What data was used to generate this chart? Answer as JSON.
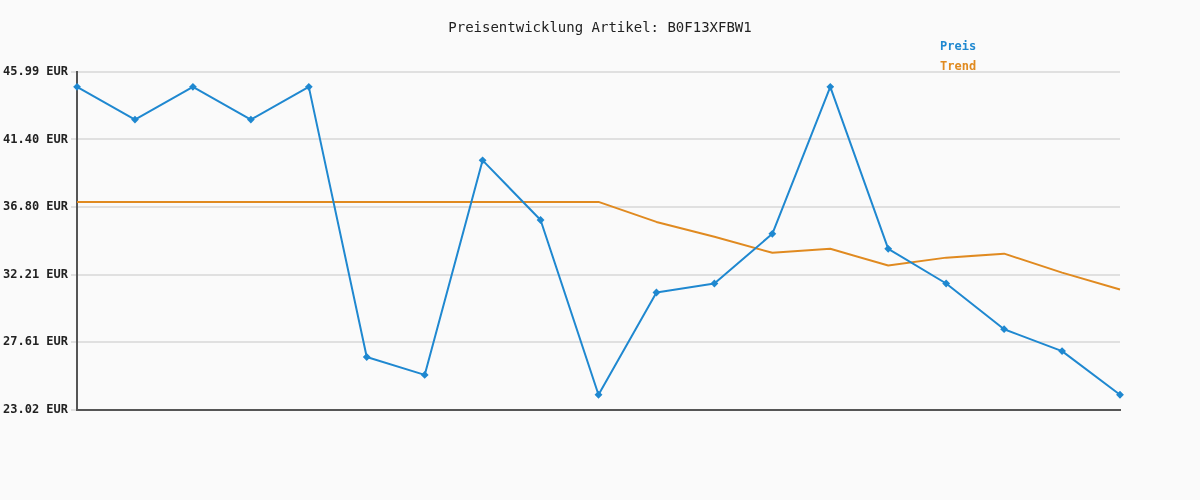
{
  "chart_data": {
    "type": "line",
    "title": "Preisentwicklung Artikel: B0F13XFBW1",
    "categories": [
      null,
      null,
      null,
      null,
      null,
      null,
      null,
      null,
      null,
      null,
      null,
      null,
      null,
      null,
      null,
      null,
      null,
      null,
      null
    ],
    "series": [
      {
        "name": "Preis",
        "color": "#1f88d0",
        "values": [
          44.98,
          42.75,
          44.98,
          42.75,
          44.98,
          26.6,
          25.38,
          39.98,
          35.92,
          24.03,
          30.99,
          31.6,
          34.98,
          44.98,
          33.96,
          31.6,
          28.49,
          27.0,
          24.03
        ]
      },
      {
        "name": "Trend",
        "color": "#e08a20",
        "marker": "none",
        "values": [
          37.15,
          37.15,
          37.15,
          37.15,
          37.15,
          37.15,
          37.15,
          37.15,
          37.15,
          37.15,
          35.79,
          34.78,
          33.69,
          33.96,
          32.82,
          33.36,
          33.63,
          32.34,
          31.19
        ]
      }
    ],
    "ylim": [
      23.02,
      45.99
    ],
    "yticks": [
      {
        "value": 23.02,
        "label": "23.02 EUR"
      },
      {
        "value": 27.61,
        "label": "27.61 EUR"
      },
      {
        "value": 32.21,
        "label": "32.21 EUR"
      },
      {
        "value": 36.8,
        "label": "36.80 EUR"
      },
      {
        "value": 41.4,
        "label": "41.40 EUR"
      },
      {
        "value": 45.99,
        "label": "45.99 EUR"
      }
    ],
    "grid": "y",
    "legend": "top right",
    "marker": "diamond",
    "line_style": "solid"
  }
}
